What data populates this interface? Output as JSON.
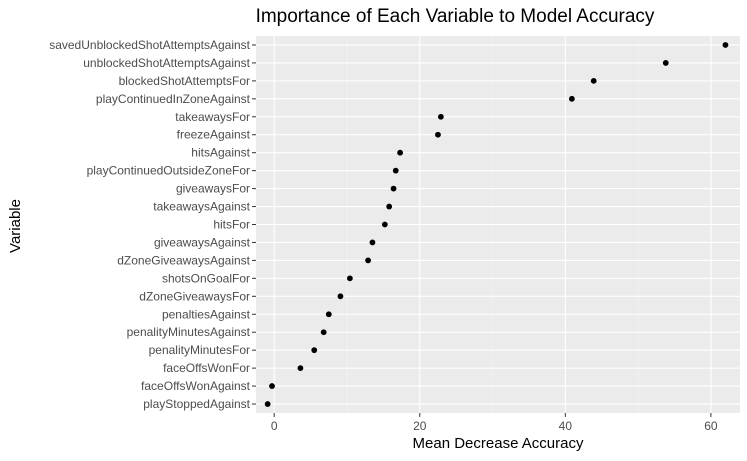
{
  "chart_data": {
    "type": "scatter",
    "title": "Importance of Each Variable to Model Accuracy",
    "xlabel": "Mean Decrease Accuracy",
    "ylabel": "Variable",
    "xlim": [
      -2.5,
      64
    ],
    "x_ticks": [
      0,
      20,
      40,
      60
    ],
    "grid": true,
    "panel_background": "#ebebeb",
    "point_color": "#000000",
    "categories": [
      "savedUnblockedShotAttemptsAgainst",
      "unblockedShotAttemptsAgainst",
      "blockedShotAttemptsFor",
      "playContinuedInZoneAgainst",
      "takeawaysFor",
      "freezeAgainst",
      "hitsAgainst",
      "playContinuedOutsideZoneFor",
      "giveawaysFor",
      "takeawaysAgainst",
      "hitsFor",
      "giveawaysAgainst",
      "dZoneGiveawaysAgainst",
      "shotsOnGoalFor",
      "dZoneGiveawaysFor",
      "penaltiesAgainst",
      "penalityMinutesAgainst",
      "penalityMinutesFor",
      "faceOffsWonFor",
      "faceOffsWonAgainst",
      "playStoppedAgainst"
    ],
    "values": [
      62.0,
      53.8,
      43.9,
      40.9,
      22.9,
      22.5,
      17.3,
      16.7,
      16.4,
      15.8,
      15.2,
      13.5,
      12.9,
      10.4,
      9.1,
      7.5,
      6.8,
      5.5,
      3.6,
      -0.3,
      -0.9
    ]
  }
}
